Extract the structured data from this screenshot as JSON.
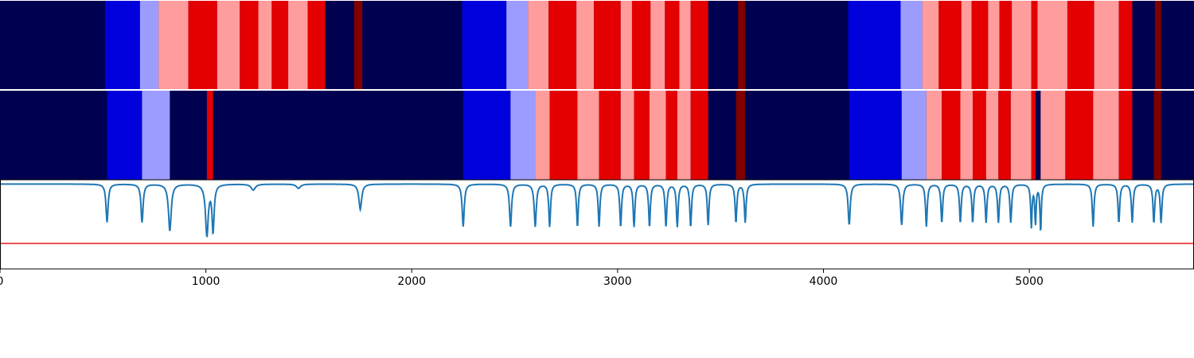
{
  "chart_data": [
    {
      "type": "heatmap",
      "xlim": [
        0,
        5800
      ],
      "background": "#000050",
      "segments": [
        {
          "start": 510,
          "end": 680,
          "color": "#0000dc"
        },
        {
          "start": 680,
          "end": 770,
          "color": "#9c9cff"
        },
        {
          "start": 770,
          "end": 915,
          "color": "#ff9c9c"
        },
        {
          "start": 915,
          "end": 1055,
          "color": "#e40000"
        },
        {
          "start": 1055,
          "end": 1165,
          "color": "#ff9c9c"
        },
        {
          "start": 1165,
          "end": 1255,
          "color": "#e40000"
        },
        {
          "start": 1255,
          "end": 1320,
          "color": "#ff9c9c"
        },
        {
          "start": 1320,
          "end": 1400,
          "color": "#e40000"
        },
        {
          "start": 1400,
          "end": 1495,
          "color": "#ff9c9c"
        },
        {
          "start": 1495,
          "end": 1580,
          "color": "#e40000"
        },
        {
          "start": 1720,
          "end": 1760,
          "color": "#800000"
        },
        {
          "start": 2245,
          "end": 2460,
          "color": "#0000dc"
        },
        {
          "start": 2460,
          "end": 2565,
          "color": "#9c9cff"
        },
        {
          "start": 2565,
          "end": 2665,
          "color": "#ff9c9c"
        },
        {
          "start": 2665,
          "end": 2800,
          "color": "#e40000"
        },
        {
          "start": 2800,
          "end": 2885,
          "color": "#ff9c9c"
        },
        {
          "start": 2885,
          "end": 3015,
          "color": "#e40000"
        },
        {
          "start": 3015,
          "end": 3070,
          "color": "#ff9c9c"
        },
        {
          "start": 3070,
          "end": 3160,
          "color": "#e40000"
        },
        {
          "start": 3160,
          "end": 3230,
          "color": "#ff9c9c"
        },
        {
          "start": 3230,
          "end": 3300,
          "color": "#e40000"
        },
        {
          "start": 3300,
          "end": 3355,
          "color": "#ff9c9c"
        },
        {
          "start": 3355,
          "end": 3440,
          "color": "#e40000"
        },
        {
          "start": 3585,
          "end": 3620,
          "color": "#800000"
        },
        {
          "start": 4120,
          "end": 4375,
          "color": "#0000dc"
        },
        {
          "start": 4375,
          "end": 4480,
          "color": "#9c9cff"
        },
        {
          "start": 4480,
          "end": 4560,
          "color": "#ff9c9c"
        },
        {
          "start": 4560,
          "end": 4670,
          "color": "#e40000"
        },
        {
          "start": 4670,
          "end": 4720,
          "color": "#ff9c9c"
        },
        {
          "start": 4720,
          "end": 4800,
          "color": "#e40000"
        },
        {
          "start": 4800,
          "end": 4855,
          "color": "#ff9c9c"
        },
        {
          "start": 4855,
          "end": 4915,
          "color": "#e40000"
        },
        {
          "start": 4915,
          "end": 5010,
          "color": "#ff9c9c"
        },
        {
          "start": 5010,
          "end": 5040,
          "color": "#e40000"
        },
        {
          "start": 5040,
          "end": 5185,
          "color": "#ff9c9c"
        },
        {
          "start": 5185,
          "end": 5315,
          "color": "#e40000"
        },
        {
          "start": 5315,
          "end": 5435,
          "color": "#ff9c9c"
        },
        {
          "start": 5435,
          "end": 5500,
          "color": "#e40000"
        },
        {
          "start": 5610,
          "end": 5640,
          "color": "#800000"
        }
      ]
    },
    {
      "type": "heatmap",
      "xlim": [
        0,
        5800
      ],
      "background": "#000050",
      "segments": [
        {
          "start": 520,
          "end": 690,
          "color": "#0000dc"
        },
        {
          "start": 690,
          "end": 825,
          "color": "#9c9cff"
        },
        {
          "start": 1005,
          "end": 1035,
          "color": "#e40000"
        },
        {
          "start": 2250,
          "end": 2480,
          "color": "#0000dc"
        },
        {
          "start": 2480,
          "end": 2600,
          "color": "#9c9cff"
        },
        {
          "start": 2600,
          "end": 2670,
          "color": "#ff9c9c"
        },
        {
          "start": 2670,
          "end": 2805,
          "color": "#e40000"
        },
        {
          "start": 2805,
          "end": 2910,
          "color": "#ff9c9c"
        },
        {
          "start": 2910,
          "end": 3015,
          "color": "#e40000"
        },
        {
          "start": 3015,
          "end": 3080,
          "color": "#ff9c9c"
        },
        {
          "start": 3080,
          "end": 3155,
          "color": "#e40000"
        },
        {
          "start": 3155,
          "end": 3235,
          "color": "#ff9c9c"
        },
        {
          "start": 3235,
          "end": 3290,
          "color": "#e40000"
        },
        {
          "start": 3290,
          "end": 3355,
          "color": "#ff9c9c"
        },
        {
          "start": 3355,
          "end": 3440,
          "color": "#e40000"
        },
        {
          "start": 3575,
          "end": 3620,
          "color": "#800000"
        },
        {
          "start": 4125,
          "end": 4380,
          "color": "#0000dc"
        },
        {
          "start": 4380,
          "end": 4500,
          "color": "#9c9cff"
        },
        {
          "start": 4500,
          "end": 4575,
          "color": "#ff9c9c"
        },
        {
          "start": 4575,
          "end": 4665,
          "color": "#e40000"
        },
        {
          "start": 4665,
          "end": 4725,
          "color": "#ff9c9c"
        },
        {
          "start": 4725,
          "end": 4790,
          "color": "#e40000"
        },
        {
          "start": 4790,
          "end": 4850,
          "color": "#ff9c9c"
        },
        {
          "start": 4850,
          "end": 4910,
          "color": "#e40000"
        },
        {
          "start": 4910,
          "end": 5010,
          "color": "#ff9c9c"
        },
        {
          "start": 5010,
          "end": 5030,
          "color": "#e40000"
        },
        {
          "start": 5055,
          "end": 5175,
          "color": "#ff9c9c"
        },
        {
          "start": 5175,
          "end": 5310,
          "color": "#e40000"
        },
        {
          "start": 5310,
          "end": 5435,
          "color": "#ff9c9c"
        },
        {
          "start": 5435,
          "end": 5500,
          "color": "#e40000"
        },
        {
          "start": 5605,
          "end": 5640,
          "color": "#800000"
        }
      ]
    },
    {
      "type": "line",
      "xlim": [
        0,
        5800
      ],
      "ylim": [
        -0.5,
        0.55
      ],
      "xticks": [
        0,
        1000,
        2000,
        3000,
        4000,
        5000
      ],
      "xtick_labels": [
        "0",
        "1000",
        "2000",
        "3000",
        "4000",
        "5000"
      ],
      "threshold": {
        "y": -0.2,
        "color": "#e41a1c"
      },
      "series": [
        {
          "color": "#1f77b4",
          "baseline": 0.5,
          "dips": [
            {
              "x": 520,
              "depth": 0.45,
              "width": 6
            },
            {
              "x": 690,
              "depth": 0.45,
              "width": 6
            },
            {
              "x": 825,
              "depth": 0.55,
              "width": 8
            },
            {
              "x": 1005,
              "depth": 0.6,
              "width": 8
            },
            {
              "x": 1035,
              "depth": 0.55,
              "width": 6
            },
            {
              "x": 1230,
              "depth": 0.07,
              "width": 12
            },
            {
              "x": 1450,
              "depth": 0.05,
              "width": 12
            },
            {
              "x": 1750,
              "depth": 0.3,
              "width": 8
            },
            {
              "x": 2250,
              "depth": 0.5,
              "width": 6
            },
            {
              "x": 2480,
              "depth": 0.5,
              "width": 6
            },
            {
              "x": 2600,
              "depth": 0.5,
              "width": 6
            },
            {
              "x": 2670,
              "depth": 0.5,
              "width": 5
            },
            {
              "x": 2805,
              "depth": 0.5,
              "width": 5
            },
            {
              "x": 2910,
              "depth": 0.5,
              "width": 5
            },
            {
              "x": 3015,
              "depth": 0.5,
              "width": 5
            },
            {
              "x": 3080,
              "depth": 0.5,
              "width": 5
            },
            {
              "x": 3155,
              "depth": 0.5,
              "width": 5
            },
            {
              "x": 3235,
              "depth": 0.5,
              "width": 5
            },
            {
              "x": 3290,
              "depth": 0.5,
              "width": 5
            },
            {
              "x": 3355,
              "depth": 0.5,
              "width": 5
            },
            {
              "x": 3440,
              "depth": 0.48,
              "width": 5
            },
            {
              "x": 3575,
              "depth": 0.45,
              "width": 5
            },
            {
              "x": 3620,
              "depth": 0.45,
              "width": 5
            },
            {
              "x": 4125,
              "depth": 0.48,
              "width": 6
            },
            {
              "x": 4380,
              "depth": 0.48,
              "width": 6
            },
            {
              "x": 4500,
              "depth": 0.5,
              "width": 5
            },
            {
              "x": 4575,
              "depth": 0.45,
              "width": 5
            },
            {
              "x": 4665,
              "depth": 0.45,
              "width": 5
            },
            {
              "x": 4725,
              "depth": 0.45,
              "width": 5
            },
            {
              "x": 4790,
              "depth": 0.45,
              "width": 5
            },
            {
              "x": 4850,
              "depth": 0.45,
              "width": 5
            },
            {
              "x": 4910,
              "depth": 0.45,
              "width": 5
            },
            {
              "x": 5010,
              "depth": 0.5,
              "width": 4
            },
            {
              "x": 5030,
              "depth": 0.45,
              "width": 4
            },
            {
              "x": 5055,
              "depth": 0.55,
              "width": 4
            },
            {
              "x": 5310,
              "depth": 0.5,
              "width": 5
            },
            {
              "x": 5435,
              "depth": 0.45,
              "width": 5
            },
            {
              "x": 5500,
              "depth": 0.45,
              "width": 5
            },
            {
              "x": 5605,
              "depth": 0.45,
              "width": 5
            },
            {
              "x": 5640,
              "depth": 0.45,
              "width": 5
            }
          ]
        }
      ]
    }
  ]
}
